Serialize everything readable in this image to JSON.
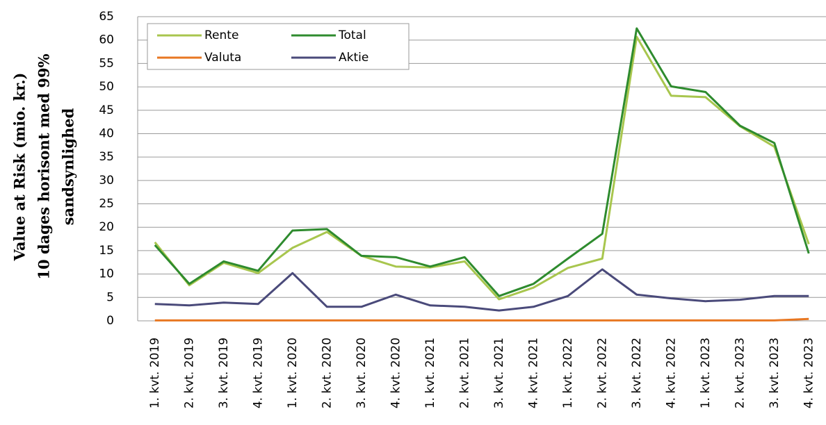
{
  "chart_data": {
    "type": "line",
    "ylabel": [
      "Value at Risk (mio. kr.)",
      "10 dages horisont med 99%",
      "sandsynlighed"
    ],
    "categories": [
      "1. kvt. 2019",
      "2. kvt. 2019",
      "3. kvt. 2019",
      "4. kvt. 2019",
      "1. kvt. 2020",
      "2. kvt. 2020",
      "3. kvt. 2020",
      "4. kvt. 2020",
      "1. kvt. 2021",
      "2. kvt. 2021",
      "3. kvt. 2021",
      "4. kvt. 2021",
      "1. kvt. 2022",
      "2. kvt. 2022",
      "3. kvt. 2022",
      "4. kvt. 2022",
      "1. kvt. 2023",
      "2. kvt. 2023",
      "3. kvt. 2023",
      "4. kvt. 2023"
    ],
    "series": [
      {
        "name": "Rente",
        "color": "#a8c64e",
        "values": [
          16.8,
          7.6,
          12.4,
          10.2,
          15.6,
          19.0,
          13.9,
          11.6,
          11.4,
          12.7,
          4.6,
          7.1,
          11.3,
          13.3,
          60.7,
          48.1,
          47.8,
          41.6,
          37.2,
          16.4
        ]
      },
      {
        "name": "Total",
        "color": "#2e8b2e",
        "values": [
          16.2,
          7.9,
          12.7,
          10.7,
          19.3,
          19.6,
          13.9,
          13.6,
          11.6,
          13.6,
          5.3,
          7.9,
          13.3,
          18.6,
          62.5,
          50.1,
          48.9,
          41.7,
          38.0,
          14.4
        ]
      },
      {
        "name": "Valuta",
        "color": "#e87722",
        "values": [
          0.1,
          0.1,
          0.1,
          0.1,
          0.1,
          0.1,
          0.1,
          0.1,
          0.1,
          0.1,
          0.1,
          0.1,
          0.1,
          0.1,
          0.1,
          0.1,
          0.1,
          0.1,
          0.1,
          0.4
        ]
      },
      {
        "name": "Aktie",
        "color": "#4a4a7a",
        "values": [
          3.6,
          3.3,
          3.9,
          3.6,
          10.2,
          3.0,
          3.0,
          5.6,
          3.3,
          3.0,
          2.2,
          3.0,
          5.3,
          11.0,
          5.6,
          4.8,
          4.2,
          4.5,
          5.3,
          5.3
        ]
      }
    ],
    "ylim": [
      0,
      65
    ],
    "yticks": [
      0,
      5,
      10,
      15,
      20,
      25,
      30,
      35,
      40,
      45,
      50,
      55,
      60,
      65
    ],
    "grid": true,
    "legend": "top-left"
  }
}
